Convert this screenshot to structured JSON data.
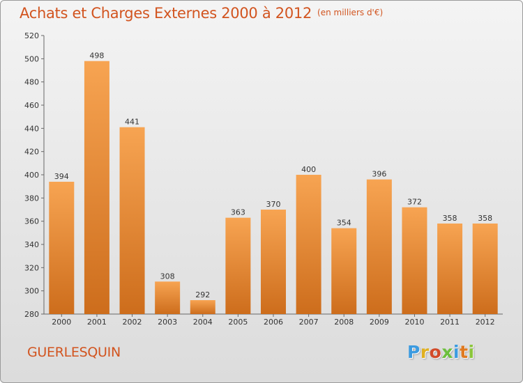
{
  "header": {
    "title": "Achats et Charges Externes 2000 à 2012",
    "unit": "(en milliers d'€)"
  },
  "footer": {
    "place": "GUERLESQUIN",
    "logo": [
      "P",
      "r",
      "o",
      "x",
      "i",
      "t",
      "i"
    ]
  },
  "colors": {
    "accent": "#d2541f",
    "bar_top": "#f7a452",
    "bar_bottom": "#cd6d1c"
  },
  "chart_data": {
    "type": "bar",
    "categories": [
      "2000",
      "2001",
      "2002",
      "2003",
      "2004",
      "2005",
      "2006",
      "2007",
      "2008",
      "2009",
      "2010",
      "2011",
      "2012"
    ],
    "values": [
      394,
      498,
      441,
      308,
      292,
      363,
      370,
      400,
      354,
      396,
      372,
      358,
      358
    ],
    "data_labels": [
      "394",
      "498",
      "441",
      "308",
      "292",
      "363",
      "370",
      "400",
      "354",
      "396",
      "372",
      "358",
      "358"
    ],
    "ylim": [
      280,
      520
    ],
    "yticks": [
      280,
      300,
      320,
      340,
      360,
      380,
      400,
      420,
      440,
      460,
      480,
      500,
      520
    ],
    "grid": false,
    "legend": "none"
  }
}
